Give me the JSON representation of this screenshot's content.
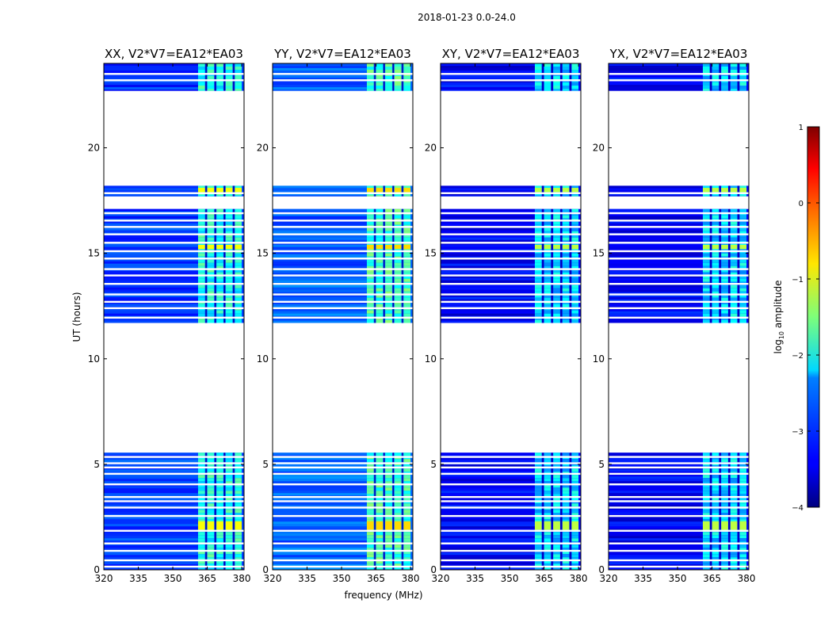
{
  "figure": {
    "suptitle": "2018-01-23 0.0-24.0",
    "xlabel": "frequency (MHz)",
    "ylabel": "UT (hours)",
    "colorbar_label": "log10 amplitude",
    "colorbar_label_base": "log",
    "colorbar_label_sub": "10",
    "colorbar_label_rest": " amplitude"
  },
  "chart_data": {
    "type": "heatmap",
    "xlabel": "frequency (MHz)",
    "ylabel": "UT (hours)",
    "x_range": [
      320,
      381
    ],
    "y_range": [
      0,
      24
    ],
    "x_ticks": [
      320,
      335,
      350,
      365,
      380
    ],
    "y_ticks": [
      0,
      5,
      10,
      15,
      20
    ],
    "colormap": "jet",
    "color_range": [
      -4,
      1
    ],
    "colorbar_ticks": [
      -4,
      -3,
      -2,
      -1,
      0,
      1
    ],
    "colorbar_tick_labels": [
      "−4",
      "−3",
      "−2",
      "−1",
      "0",
      "1"
    ],
    "panels": [
      {
        "title": "XX, V2*V7=EA12*EA03"
      },
      {
        "title": "YY, V2*V7=EA12*EA03"
      },
      {
        "title": "XY, V2*V7=EA12*EA03"
      },
      {
        "title": "YX, V2*V7=EA12*EA03"
      }
    ],
    "data_intervals_ut": [
      [
        0.0,
        5.55
      ],
      [
        11.7,
        17.1
      ],
      [
        17.7,
        18.2
      ],
      [
        22.7,
        24.0
      ]
    ],
    "bright_band_mhz": [
      361,
      380
    ],
    "bright_subbands_mhz": [
      [
        361,
        364
      ],
      [
        365,
        368
      ],
      [
        369,
        372
      ],
      [
        373,
        376
      ],
      [
        377,
        380
      ]
    ],
    "dark_channels_mhz": [
      364.5,
      368.5,
      372.5,
      376.5
    ],
    "flagged_lines_ut": [
      0.15,
      0.45,
      0.9,
      1.25,
      1.85,
      2.55,
      2.95,
      3.25,
      3.45,
      4.05,
      4.55,
      4.85,
      5.05,
      5.35,
      11.95,
      12.4,
      12.7,
      13.05,
      13.55,
      13.95,
      14.25,
      14.75,
      15.1,
      15.5,
      15.9,
      16.25,
      16.55,
      16.9,
      17.85,
      23.2,
      23.5
    ],
    "bright_events_ut": [
      [
        1.9,
        2.3
      ],
      [
        15.2,
        15.4
      ],
      [
        17.9,
        18.1
      ]
    ],
    "baseline_level": {
      "XX": -3.1,
      "YY": -2.9,
      "XY": -3.4,
      "YX": -3.4
    },
    "band_level": {
      "XX": -2.0,
      "YY": -1.8,
      "XY": -2.3,
      "YX": -2.3
    }
  }
}
